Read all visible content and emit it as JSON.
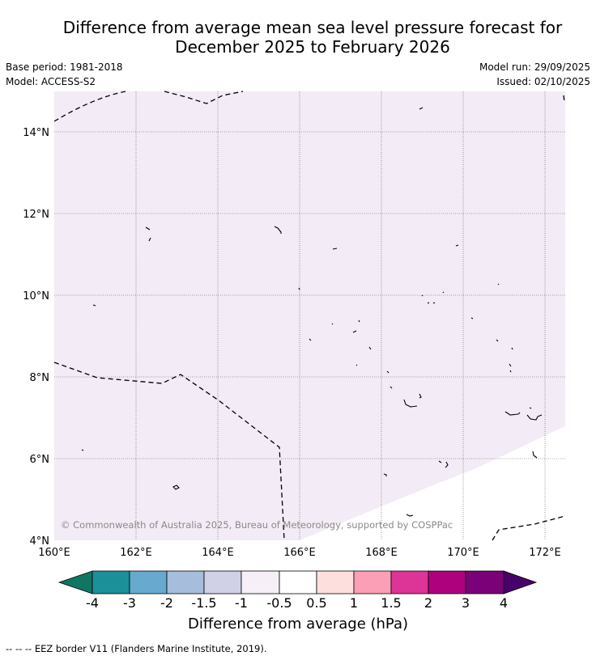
{
  "header": {
    "title_line1": "Difference from average mean sea level pressure forecast for",
    "title_line2": "December 2025 to February 2026",
    "base_period": "Base period: 1981-2018",
    "model": "Model: ACCESS-S2",
    "model_run": "Model run: 29/09/2025",
    "issued": "Issued: 02/10/2025"
  },
  "map": {
    "lon_ticks": [
      "160°E",
      "162°E",
      "164°E",
      "166°E",
      "168°E",
      "170°E",
      "172°E"
    ],
    "lat_ticks": [
      "4°N",
      "6°N",
      "8°N",
      "10°N",
      "12°N",
      "14°N"
    ],
    "copyright": "© Commonwealth of Australia 2025, Bureau of Meteorology, supported by COSPPac",
    "fill_color": "#f3ebf5",
    "neutral_color": "#ffffff"
  },
  "colorbar": {
    "tick_labels": [
      "-4",
      "-3",
      "-2",
      "-1.5",
      "-1",
      "-0.5",
      "0.5",
      "1",
      "1.5",
      "2",
      "3",
      "4"
    ],
    "colors": [
      "#117563",
      "#1c9099",
      "#67a9cf",
      "#a6bddb",
      "#d0d1e6",
      "#f6eff7",
      "#ffffff",
      "#fde0dd",
      "#fa9fb5",
      "#dd3497",
      "#ae017e",
      "#7a0177",
      "#49006a"
    ],
    "label": "Difference from average (hPa)"
  },
  "footer": {
    "legend": "--  --  -- EEZ border V11 (Flanders Marine Institute, 2019)."
  }
}
